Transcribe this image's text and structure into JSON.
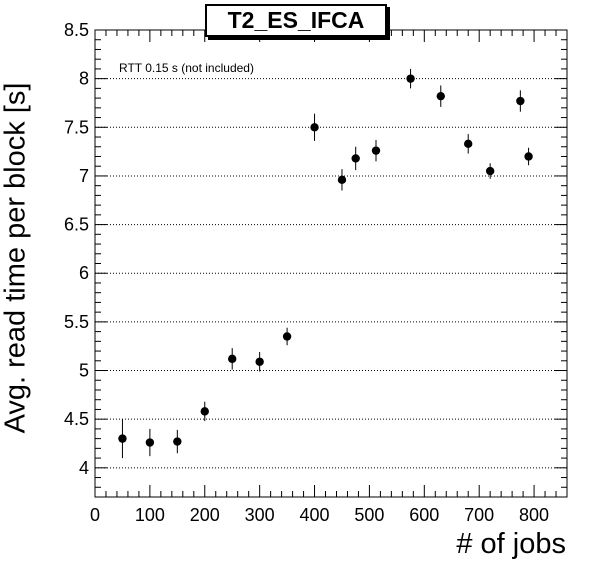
{
  "chart_data": {
    "type": "scatter",
    "title": "T2_ES_IFCA",
    "xlabel": "# of jobs",
    "ylabel": "Avg. read time per block [s]",
    "annotation": "RTT 0.15 s (not included)",
    "xlim": [
      0,
      860
    ],
    "ylim": [
      3.7,
      8.5
    ],
    "x_ticks": [
      0,
      100,
      200,
      300,
      400,
      500,
      600,
      700,
      800
    ],
    "y_ticks": [
      4,
      4.5,
      5,
      5.5,
      6,
      6.5,
      7,
      7.5,
      8,
      8.5
    ],
    "y_tick_labels": [
      "4",
      "4.5",
      "5",
      "5.5",
      "6",
      "6.5",
      "7",
      "7.5",
      "8",
      "8.5"
    ],
    "grid": "horizontal dotted",
    "series": [
      {
        "points": [
          {
            "x": 50,
            "y": 4.3,
            "err": 0.2
          },
          {
            "x": 100,
            "y": 4.26,
            "err": 0.14
          },
          {
            "x": 150,
            "y": 4.27,
            "err": 0.12
          },
          {
            "x": 200,
            "y": 4.58,
            "err": 0.1
          },
          {
            "x": 250,
            "y": 5.12,
            "err": 0.11
          },
          {
            "x": 300,
            "y": 5.09,
            "err": 0.1
          },
          {
            "x": 350,
            "y": 5.35,
            "err": 0.09
          },
          {
            "x": 400,
            "y": 7.5,
            "err": 0.14
          },
          {
            "x": 450,
            "y": 6.96,
            "err": 0.11
          },
          {
            "x": 475,
            "y": 7.18,
            "err": 0.12
          },
          {
            "x": 512,
            "y": 7.26,
            "err": 0.11
          },
          {
            "x": 575,
            "y": 8.0,
            "err": 0.1
          },
          {
            "x": 630,
            "y": 7.82,
            "err": 0.11
          },
          {
            "x": 680,
            "y": 7.33,
            "err": 0.1
          },
          {
            "x": 720,
            "y": 7.05,
            "err": 0.08
          },
          {
            "x": 775,
            "y": 7.77,
            "err": 0.11
          },
          {
            "x": 790,
            "y": 7.2,
            "err": 0.09
          }
        ]
      }
    ]
  }
}
